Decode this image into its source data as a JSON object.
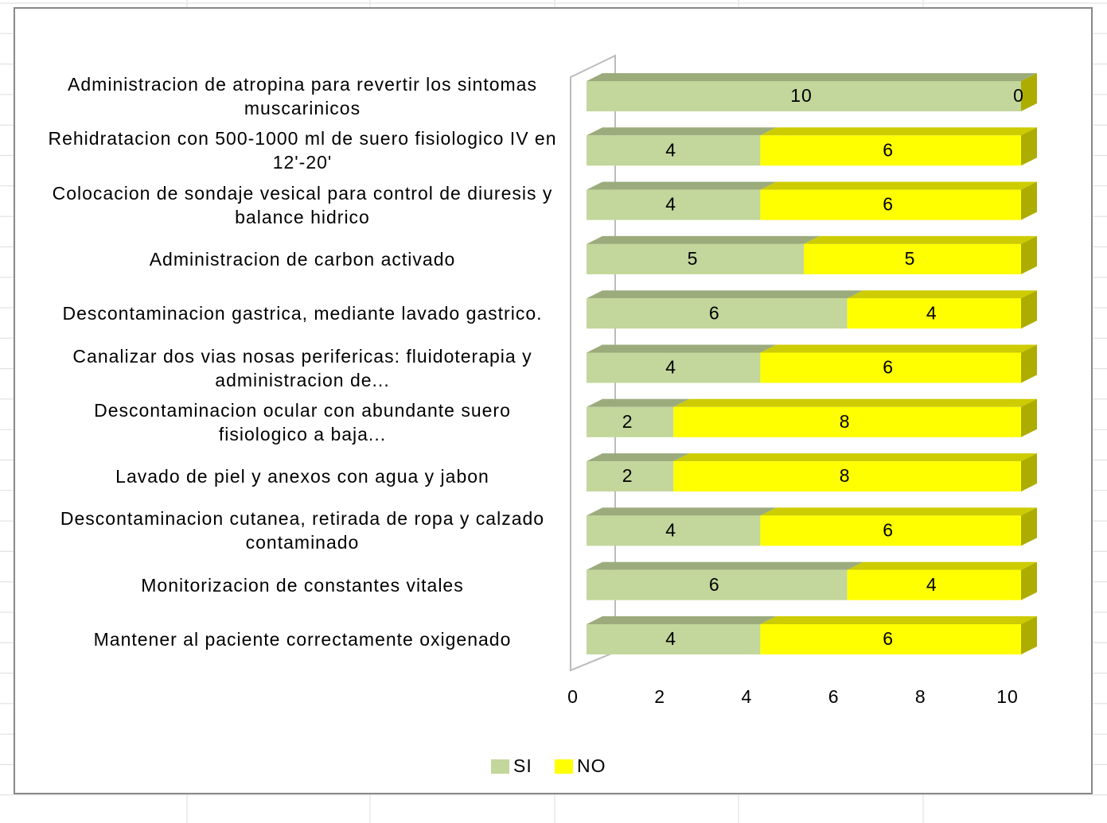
{
  "chart_data": {
    "type": "bar3d_stacked_horizontal",
    "categories": [
      "Administracion de atropina para revertir los sintomas muscarinicos",
      "Rehidratacion con 500-1000 ml de suero fisiologico IV en 12'-20'",
      "Colocacion de sondaje vesical para control de diuresis y balance hidrico",
      "Administracion de carbon activado",
      "Descontaminacion gastrica, mediante lavado gastrico.",
      "Canalizar dos vias nosas perifericas: fluidoterapia y administracion de...",
      "Descontaminacion ocular con abundante suero fisiologico a baja...",
      "Lavado de piel y anexos con agua y jabon",
      "Descontaminacion cutanea, retirada de ropa y calzado contaminado",
      "Monitorizacion de constantes vitales",
      "Mantener al paciente correctamente oxigenado"
    ],
    "series": [
      {
        "name": "SI",
        "color": "#c3d69b",
        "values": [
          10,
          4,
          4,
          5,
          6,
          4,
          2,
          2,
          4,
          6,
          4
        ]
      },
      {
        "name": "NO",
        "color": "#ffff00",
        "values": [
          0,
          6,
          6,
          5,
          4,
          6,
          8,
          8,
          6,
          4,
          6
        ]
      }
    ],
    "xlim": [
      0,
      10
    ],
    "xticks": [
      0,
      2,
      4,
      6,
      8,
      10
    ],
    "legend": "bottom"
  }
}
